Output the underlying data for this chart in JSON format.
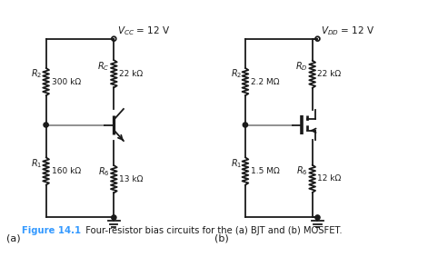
{
  "fig_width": 4.82,
  "fig_height": 2.94,
  "dpi": 100,
  "bg_color": "#ffffff",
  "line_color": "#1a1a1a",
  "gray_color": "#888888",
  "figure_label_color": "#3399ff",
  "label_a": "(a)",
  "label_b": "(b)",
  "vcc_label": "$V_{CC}$ = 12 V",
  "vdd_label": "$V_{DD}$ = 12 V",
  "bjt": {
    "R2_label": "$R_2$",
    "R2_val": "300 kΩ",
    "R1_label": "$R_1$",
    "R1_val": "160 kΩ",
    "Rc_label": "$R_C$",
    "Rc_val": "22 kΩ",
    "Re_label": "$R_6$",
    "Re_val": "13 kΩ"
  },
  "mosfet": {
    "R2_label": "$R_2$",
    "R2_val": "2.2 MΩ",
    "R1_label": "$R_1$",
    "R1_val": "1.5 MΩ",
    "Rd_label": "$R_D$",
    "Rd_val": "22 kΩ",
    "Rs_label": "$R_6$",
    "Rs_val": "12 kΩ"
  },
  "fig_caption_bold": "Figure 14.1",
  "fig_caption_rest": "  Four-resistor bias circuits for the (a) BJT and (b) MOSFET."
}
